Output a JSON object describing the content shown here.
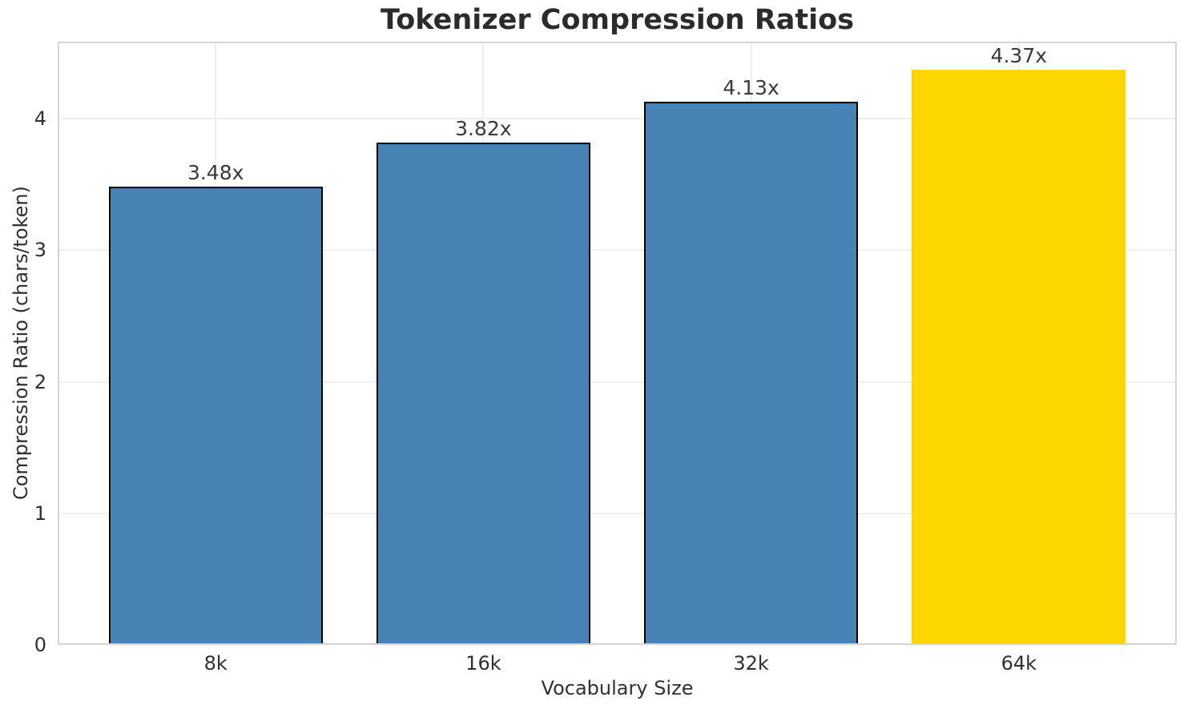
{
  "chart_data": {
    "type": "bar",
    "title": "Tokenizer Compression Ratios",
    "xlabel": "Vocabulary Size",
    "ylabel": "Compression Ratio (chars/token)",
    "categories": [
      "8k",
      "16k",
      "32k",
      "64k"
    ],
    "values": [
      3.48,
      3.82,
      4.13,
      4.37
    ],
    "bar_labels": [
      "3.48x",
      "3.82x",
      "4.13x",
      "4.37x"
    ],
    "yticks": [
      "0",
      "1",
      "2",
      "3",
      "4"
    ],
    "ytick_values": [
      0,
      1,
      2,
      3,
      4
    ],
    "ylim": [
      0,
      4.585
    ],
    "grid": true,
    "legend_position": "none",
    "bar_colors": [
      "#4682B4",
      "#4682B4",
      "#4682B4",
      "#FFD700"
    ],
    "bar_edge_colors": [
      "#000000",
      "#000000",
      "#000000",
      "#FFD700"
    ],
    "highlight_category": "64k"
  },
  "colors": {
    "background": "#ffffff",
    "bar_default": "#4682B4",
    "bar_highlight": "#FFD700",
    "bar_edge": "#000000",
    "grid": "#efefef",
    "spine": "#d4d4d4",
    "text": "#303030",
    "title_text": "#2b2b2b"
  }
}
